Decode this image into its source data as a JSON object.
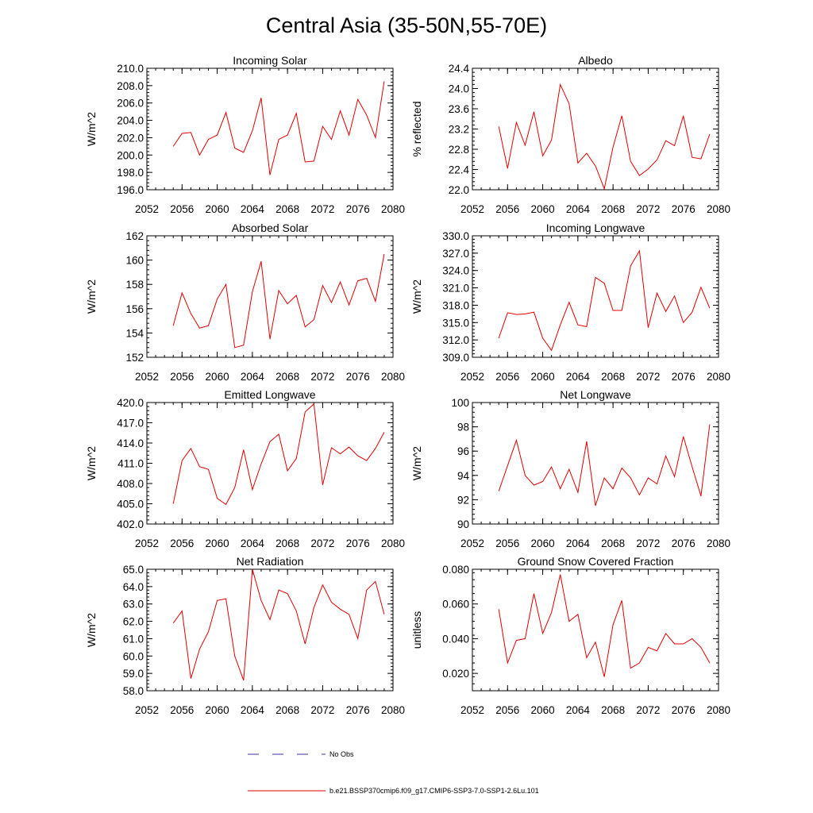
{
  "title": "Central Asia (35-50N,55-70E)",
  "legend": {
    "obs_label": "No Obs",
    "obs_color": "#3333aa",
    "model_label": "b.e21.BSSP370cmip6.f09_g17.CMIP6-SSP3-7.0-SSP1-2.6Lu.101",
    "model_color": "#e00000"
  },
  "chart_data": [
    {
      "type": "line",
      "title": "Incoming Solar",
      "ylabel": "W/m^2",
      "xlim": [
        2052,
        2080
      ],
      "ylim": [
        196,
        210
      ],
      "xticks": [
        2052,
        2056,
        2060,
        2064,
        2068,
        2072,
        2076,
        2080
      ],
      "xtick_labels": [
        "2052",
        "2056",
        "2060",
        "2064",
        "2068",
        "2072",
        "2076",
        "2080"
      ],
      "yticks": [
        196,
        198,
        200,
        202,
        204,
        206,
        208,
        210
      ],
      "ytick_labels": [
        "196.0",
        "198.0",
        "200.0",
        "202.0",
        "204.0",
        "206.0",
        "208.0",
        "210.0"
      ],
      "x": [
        2055,
        2056,
        2057,
        2058,
        2059,
        2060,
        2061,
        2062,
        2063,
        2064,
        2065,
        2066,
        2067,
        2068,
        2069,
        2070,
        2071,
        2072,
        2073,
        2074,
        2075,
        2076,
        2077,
        2078,
        2079
      ],
      "y": [
        201.0,
        202.5,
        202.6,
        200.0,
        201.8,
        202.3,
        204.9,
        200.8,
        200.3,
        202.8,
        206.6,
        197.7,
        201.8,
        202.3,
        204.8,
        199.2,
        199.3,
        203.3,
        201.8,
        205.1,
        202.3,
        206.4,
        204.6,
        202.0,
        208.5
      ]
    },
    {
      "type": "line",
      "title": "Albedo",
      "ylabel": "% reflected",
      "xlim": [
        2052,
        2080
      ],
      "ylim": [
        22.0,
        24.4
      ],
      "xticks": [
        2052,
        2056,
        2060,
        2064,
        2068,
        2072,
        2076,
        2080
      ],
      "xtick_labels": [
        "2052",
        "2056",
        "2060",
        "2064",
        "2068",
        "2072",
        "2076",
        "2080"
      ],
      "yticks": [
        22.0,
        22.4,
        22.8,
        23.2,
        23.6,
        24.0,
        24.4
      ],
      "ytick_labels": [
        "22.0",
        "22.4",
        "22.8",
        "23.2",
        "23.6",
        "24.0",
        "24.4"
      ],
      "x": [
        2055,
        2056,
        2057,
        2058,
        2059,
        2060,
        2061,
        2062,
        2063,
        2064,
        2065,
        2066,
        2067,
        2068,
        2069,
        2070,
        2071,
        2072,
        2073,
        2074,
        2075,
        2076,
        2077,
        2078,
        2079
      ],
      "y": [
        23.25,
        22.42,
        23.33,
        22.88,
        23.54,
        22.67,
        22.98,
        24.08,
        23.7,
        22.53,
        22.72,
        22.47,
        22.02,
        22.84,
        23.46,
        22.56,
        22.28,
        22.41,
        22.59,
        22.97,
        22.87,
        23.46,
        22.64,
        22.61,
        23.1
      ]
    },
    {
      "type": "line",
      "title": "Absorbed Solar",
      "ylabel": "W/m^2",
      "xlim": [
        2052,
        2080
      ],
      "ylim": [
        152,
        162
      ],
      "xticks": [
        2052,
        2056,
        2060,
        2064,
        2068,
        2072,
        2076,
        2080
      ],
      "xtick_labels": [
        "2052",
        "2056",
        "2060",
        "2064",
        "2068",
        "2072",
        "2076",
        "2080"
      ],
      "yticks": [
        152,
        154,
        156,
        158,
        160,
        162
      ],
      "ytick_labels": [
        "152",
        "154",
        "156",
        "158",
        "160",
        "162"
      ],
      "x": [
        2055,
        2056,
        2057,
        2058,
        2059,
        2060,
        2061,
        2062,
        2063,
        2064,
        2065,
        2066,
        2067,
        2068,
        2069,
        2070,
        2071,
        2072,
        2073,
        2074,
        2075,
        2076,
        2077,
        2078,
        2079
      ],
      "y": [
        154.6,
        157.3,
        155.6,
        154.4,
        154.6,
        156.8,
        158.0,
        152.8,
        153.0,
        157.4,
        159.9,
        153.5,
        157.5,
        156.4,
        157.1,
        154.5,
        155.1,
        157.9,
        156.5,
        158.2,
        156.3,
        158.3,
        158.5,
        156.6,
        160.5
      ]
    },
    {
      "type": "line",
      "title": "Incoming Longwave",
      "ylabel": "W/m^2",
      "xlim": [
        2052,
        2080
      ],
      "ylim": [
        309,
        330
      ],
      "xticks": [
        2052,
        2056,
        2060,
        2064,
        2068,
        2072,
        2076,
        2080
      ],
      "xtick_labels": [
        "2052",
        "2056",
        "2060",
        "2064",
        "2068",
        "2072",
        "2076",
        "2080"
      ],
      "yticks": [
        309,
        312,
        315,
        318,
        321,
        324,
        327,
        330
      ],
      "ytick_labels": [
        "309.0",
        "312.0",
        "315.0",
        "318.0",
        "321.0",
        "324.0",
        "327.0",
        "330.0"
      ],
      "x": [
        2055,
        2056,
        2057,
        2058,
        2059,
        2060,
        2061,
        2062,
        2063,
        2064,
        2065,
        2066,
        2067,
        2068,
        2069,
        2070,
        2071,
        2072,
        2073,
        2074,
        2075,
        2076,
        2077,
        2078,
        2079
      ],
      "y": [
        312.3,
        316.7,
        316.4,
        316.5,
        316.8,
        312.3,
        310.2,
        314.6,
        318.5,
        314.6,
        314.3,
        322.8,
        321.8,
        317.1,
        317.1,
        324.8,
        327.4,
        314.1,
        320.1,
        316.9,
        319.6,
        315.0,
        316.8,
        321.1,
        317.5
      ]
    },
    {
      "type": "line",
      "title": "Emitted Longwave",
      "ylabel": "W/m^2",
      "xlim": [
        2052,
        2080
      ],
      "ylim": [
        402,
        420
      ],
      "xticks": [
        2052,
        2056,
        2060,
        2064,
        2068,
        2072,
        2076,
        2080
      ],
      "xtick_labels": [
        "2052",
        "2056",
        "2060",
        "2064",
        "2068",
        "2072",
        "2076",
        "2080"
      ],
      "yticks": [
        402,
        405,
        408,
        411,
        414,
        417,
        420
      ],
      "ytick_labels": [
        "402.0",
        "405.0",
        "408.0",
        "411.0",
        "414.0",
        "417.0",
        "420.0"
      ],
      "x": [
        2055,
        2056,
        2057,
        2058,
        2059,
        2060,
        2061,
        2062,
        2063,
        2064,
        2065,
        2066,
        2067,
        2068,
        2069,
        2070,
        2071,
        2072,
        2073,
        2074,
        2075,
        2076,
        2077,
        2078,
        2079
      ],
      "y": [
        405.0,
        411.4,
        413.2,
        410.5,
        410.1,
        405.8,
        404.9,
        407.4,
        413.0,
        407.1,
        410.9,
        414.2,
        415.3,
        409.9,
        411.7,
        418.6,
        419.8,
        407.8,
        413.3,
        412.4,
        413.4,
        412.1,
        411.4,
        413.2,
        415.6
      ]
    },
    {
      "type": "line",
      "title": "Net Longwave",
      "ylabel": "W/m^2",
      "xlim": [
        2052,
        2080
      ],
      "ylim": [
        90,
        100
      ],
      "xticks": [
        2052,
        2056,
        2060,
        2064,
        2068,
        2072,
        2076,
        2080
      ],
      "xtick_labels": [
        "2052",
        "2056",
        "2060",
        "2064",
        "2068",
        "2072",
        "2076",
        "2080"
      ],
      "yticks": [
        90,
        92,
        94,
        96,
        98,
        100
      ],
      "ytick_labels": [
        "90",
        "92",
        "94",
        "96",
        "98",
        "100"
      ],
      "x": [
        2055,
        2056,
        2057,
        2058,
        2059,
        2060,
        2061,
        2062,
        2063,
        2064,
        2065,
        2066,
        2067,
        2068,
        2069,
        2070,
        2071,
        2072,
        2073,
        2074,
        2075,
        2076,
        2077,
        2078,
        2079
      ],
      "y": [
        92.7,
        94.8,
        96.9,
        94.0,
        93.2,
        93.5,
        94.7,
        92.9,
        94.5,
        92.6,
        96.8,
        91.5,
        93.8,
        92.9,
        94.6,
        93.8,
        92.4,
        93.8,
        93.3,
        95.6,
        93.9,
        97.2,
        94.7,
        92.3,
        98.2
      ]
    },
    {
      "type": "line",
      "title": "Net Radiation",
      "ylabel": "W/m^2",
      "xlim": [
        2052,
        2080
      ],
      "ylim": [
        58,
        65
      ],
      "xticks": [
        2052,
        2056,
        2060,
        2064,
        2068,
        2072,
        2076,
        2080
      ],
      "xtick_labels": [
        "2052",
        "2056",
        "2060",
        "2064",
        "2068",
        "2072",
        "2076",
        "2080"
      ],
      "yticks": [
        58,
        59,
        60,
        61,
        62,
        63,
        64,
        65
      ],
      "ytick_labels": [
        "58.0",
        "59.0",
        "60.0",
        "61.0",
        "62.0",
        "63.0",
        "64.0",
        "65.0"
      ],
      "x": [
        2055,
        2056,
        2057,
        2058,
        2059,
        2060,
        2061,
        2062,
        2063,
        2064,
        2065,
        2066,
        2067,
        2068,
        2069,
        2070,
        2071,
        2072,
        2073,
        2074,
        2075,
        2076,
        2077,
        2078,
        2079
      ],
      "y": [
        61.9,
        62.6,
        58.7,
        60.4,
        61.4,
        63.2,
        63.3,
        60.0,
        58.6,
        65.0,
        63.2,
        62.1,
        63.8,
        63.6,
        62.6,
        60.7,
        62.8,
        64.1,
        63.1,
        62.7,
        62.4,
        61.0,
        63.8,
        64.3,
        62.4
      ]
    },
    {
      "type": "line",
      "title": "Ground Snow Covered Fraction",
      "ylabel": "unitless",
      "xlim": [
        2052,
        2080
      ],
      "ylim": [
        0.01,
        0.08
      ],
      "xticks": [
        2052,
        2056,
        2060,
        2064,
        2068,
        2072,
        2076,
        2080
      ],
      "xtick_labels": [
        "2052",
        "2056",
        "2060",
        "2064",
        "2068",
        "2072",
        "2076",
        "2080"
      ],
      "yticks": [
        0.02,
        0.04,
        0.06,
        0.08
      ],
      "ytick_labels": [
        "0.020",
        "0.040",
        "0.060",
        "0.080"
      ],
      "x": [
        2055,
        2056,
        2057,
        2058,
        2059,
        2060,
        2061,
        2062,
        2063,
        2064,
        2065,
        2066,
        2067,
        2068,
        2069,
        2070,
        2071,
        2072,
        2073,
        2074,
        2075,
        2076,
        2077,
        2078,
        2079
      ],
      "y": [
        0.057,
        0.026,
        0.039,
        0.04,
        0.066,
        0.043,
        0.055,
        0.077,
        0.05,
        0.054,
        0.029,
        0.038,
        0.018,
        0.048,
        0.062,
        0.023,
        0.026,
        0.035,
        0.033,
        0.043,
        0.037,
        0.037,
        0.04,
        0.035,
        0.026
      ]
    }
  ]
}
